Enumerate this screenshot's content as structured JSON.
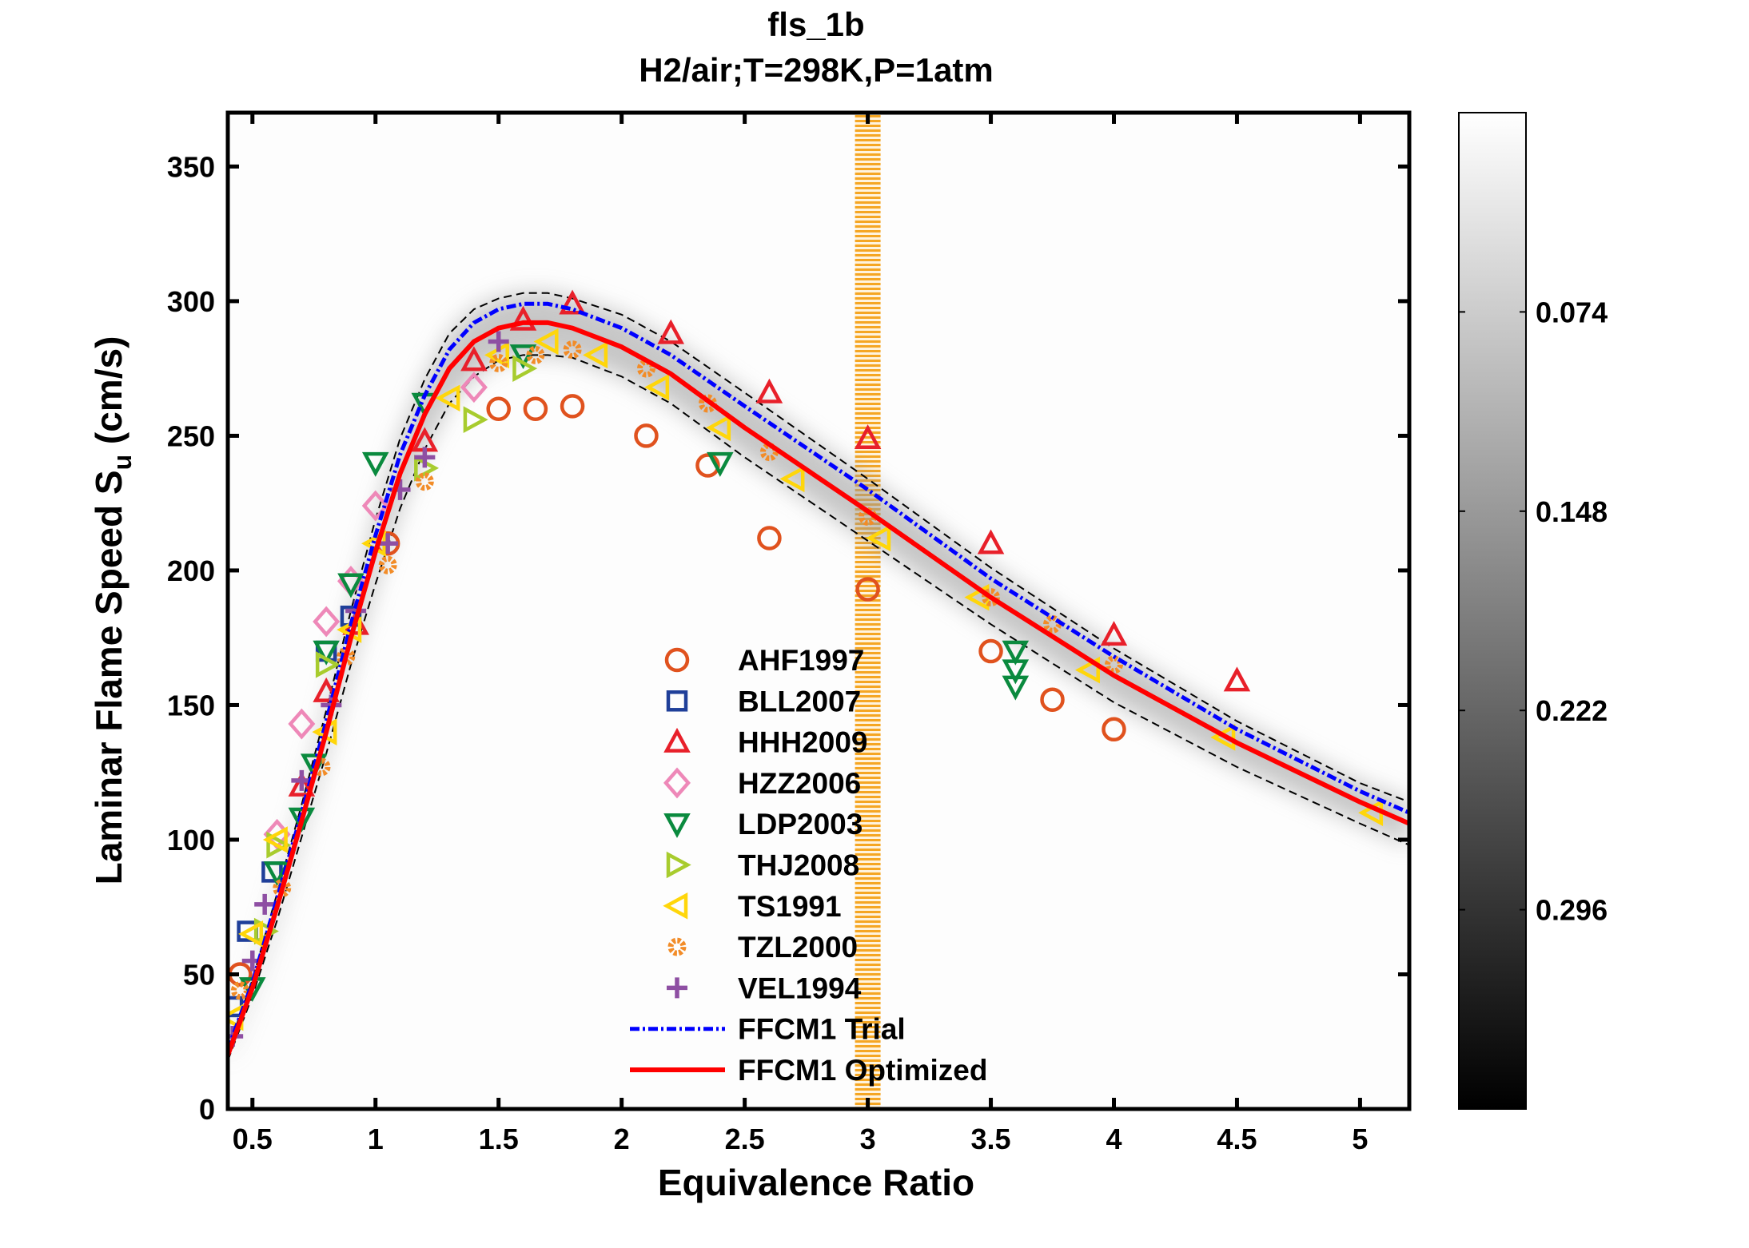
{
  "chart_data": {
    "type": "scatter",
    "title": "fls_1b",
    "subtitle": "H2/air;T=298K,P=1atm",
    "xlabel": "Equivalence Ratio",
    "ylabel": "Laminar Flame Speed S",
    "ylabel_sub": "u",
    "ylabel_unit": " (cm/s)",
    "xlim": [
      0.4,
      5.2
    ],
    "ylim": [
      0,
      370
    ],
    "xticks": [
      0.5,
      1,
      1.5,
      2,
      2.5,
      3,
      3.5,
      4,
      4.5,
      5
    ],
    "xtick_labels": [
      "0.5",
      "1",
      "1.5",
      "2",
      "2.5",
      "3",
      "3.5",
      "4",
      "4.5",
      "5"
    ],
    "yticks": [
      0,
      50,
      100,
      150,
      200,
      250,
      300,
      350
    ],
    "ytick_labels": [
      "0",
      "50",
      "100",
      "150",
      "200",
      "250",
      "300",
      "350"
    ],
    "grid": false,
    "legend_placement": "center-bottom",
    "highlight_band": {
      "x": 3.0,
      "color": "#F5A623"
    },
    "series": [
      {
        "name": "AHF1997",
        "marker": "circle",
        "color": "#E0521E",
        "x": [
          0.45,
          1.05,
          1.5,
          1.65,
          1.8,
          2.1,
          2.35,
          2.6,
          3.0,
          3.5,
          3.75,
          4.0
        ],
        "y": [
          50,
          210,
          260,
          260,
          261,
          250,
          239,
          212,
          193,
          170,
          152,
          141
        ]
      },
      {
        "name": "BLL2007",
        "marker": "square",
        "color": "#1F3F99",
        "x": [
          0.42,
          0.48,
          0.58,
          0.8,
          0.9
        ],
        "y": [
          38,
          66,
          88,
          170,
          183
        ]
      },
      {
        "name": "HHH2009",
        "marker": "triangle-up",
        "color": "#E8202A",
        "x": [
          0.7,
          0.8,
          0.92,
          1.2,
          1.4,
          1.6,
          1.8,
          2.2,
          2.6,
          3.0,
          3.5,
          4.0,
          4.5
        ],
        "y": [
          120,
          155,
          180,
          248,
          278,
          293,
          299,
          288,
          266,
          249,
          210,
          176,
          159
        ]
      },
      {
        "name": "HZZ2006",
        "marker": "diamond",
        "color": "#EE88B8",
        "x": [
          0.6,
          0.7,
          0.8,
          0.9,
          1.0,
          1.4
        ],
        "y": [
          102,
          143,
          181,
          196,
          224,
          268
        ]
      },
      {
        "name": "LDP2003",
        "marker": "triangle-down",
        "color": "#0A8A3E",
        "x": [
          0.5,
          0.6,
          0.7,
          0.75,
          0.8,
          0.9,
          1.0,
          1.2,
          1.6,
          2.4,
          3.6,
          3.6,
          3.6
        ],
        "y": [
          45,
          88,
          108,
          128,
          170,
          195,
          240,
          262,
          280,
          240,
          170,
          163,
          157
        ]
      },
      {
        "name": "THJ2008",
        "marker": "triangle-right",
        "color": "#A8CC2E",
        "x": [
          0.55,
          0.6,
          0.8,
          1.2,
          1.4,
          1.6
        ],
        "y": [
          66,
          98,
          165,
          238,
          256,
          275
        ]
      },
      {
        "name": "TS1991",
        "marker": "triangle-left",
        "color": "#FFD60A",
        "x": [
          0.42,
          0.5,
          0.6,
          0.8,
          0.9,
          1.0,
          1.3,
          1.5,
          1.7,
          1.9,
          2.15,
          2.4,
          2.7,
          3.05,
          3.45,
          3.9,
          4.45,
          5.05
        ],
        "y": [
          34,
          65,
          100,
          140,
          178,
          210,
          264,
          280,
          285,
          280,
          268,
          253,
          234,
          212,
          190,
          163,
          138,
          110
        ]
      },
      {
        "name": "TZL2000",
        "marker": "gear",
        "color": "#F28C28",
        "x": [
          0.45,
          0.62,
          0.78,
          0.88,
          1.05,
          1.2,
          1.5,
          1.65,
          1.8,
          2.1,
          2.35,
          2.6,
          3.0,
          3.5,
          3.75,
          4.0
        ],
        "y": [
          44,
          82,
          127,
          168,
          202,
          233,
          277,
          280,
          282,
          275,
          262,
          244,
          220,
          190,
          180,
          165
        ]
      },
      {
        "name": "VEL1994",
        "marker": "plus",
        "color": "#8E4FA3",
        "x": [
          0.42,
          0.5,
          0.55,
          0.7,
          0.82,
          0.92,
          1.05,
          1.1,
          1.2,
          1.5
        ],
        "y": [
          27,
          55,
          76,
          122,
          150,
          185,
          210,
          230,
          242,
          285
        ]
      }
    ],
    "lines": [
      {
        "name": "FFCM1 Trial",
        "style": "dash-dot",
        "color": "#0000FF",
        "x": [
          0.4,
          0.5,
          0.6,
          0.7,
          0.8,
          0.9,
          1.0,
          1.1,
          1.2,
          1.3,
          1.4,
          1.5,
          1.6,
          1.7,
          1.8,
          2.0,
          2.2,
          2.5,
          3.0,
          3.5,
          4.0,
          4.5,
          5.0,
          5.2
        ],
        "y": [
          22,
          47,
          78,
          110,
          144,
          180,
          213,
          243,
          265,
          282,
          292,
          297,
          299,
          299,
          297,
          290,
          280,
          261,
          230,
          197,
          168,
          141,
          118,
          110
        ]
      },
      {
        "name": "FFCM1 Optimized",
        "style": "solid",
        "color": "#FF0000",
        "x": [
          0.4,
          0.5,
          0.6,
          0.7,
          0.8,
          0.9,
          1.0,
          1.1,
          1.2,
          1.3,
          1.4,
          1.5,
          1.6,
          1.7,
          1.8,
          2.0,
          2.2,
          2.5,
          3.0,
          3.5,
          4.0,
          4.5,
          5.0,
          5.2
        ],
        "y": [
          20,
          45,
          75,
          107,
          140,
          175,
          207,
          236,
          258,
          275,
          285,
          290,
          292,
          292,
          290,
          283,
          273,
          253,
          222,
          190,
          161,
          136,
          114,
          106
        ]
      }
    ],
    "uncertainty_band": {
      "color": "#000000",
      "x": [
        0.4,
        0.5,
        0.6,
        0.7,
        0.8,
        0.9,
        1.0,
        1.1,
        1.2,
        1.3,
        1.4,
        1.5,
        1.6,
        1.7,
        1.8,
        2.0,
        2.2,
        2.5,
        3.0,
        3.5,
        4.0,
        4.5,
        5.0,
        5.2
      ],
      "upper": [
        22,
        48,
        80,
        113,
        148,
        185,
        219,
        249,
        271,
        288,
        297,
        301,
        303,
        303,
        301,
        295,
        285,
        266,
        234,
        201,
        171,
        144,
        121,
        114
      ],
      "lower": [
        18,
        42,
        70,
        101,
        132,
        165,
        195,
        223,
        245,
        262,
        272,
        278,
        280,
        280,
        279,
        272,
        262,
        242,
        211,
        180,
        151,
        127,
        106,
        98
      ]
    },
    "colorbar": {
      "range": [
        0,
        0.37
      ],
      "direction": "top-low",
      "colormap": "gray",
      "ticks": [
        0.074,
        0.148,
        0.222,
        0.296
      ],
      "tick_labels": [
        "0.074",
        "0.148",
        "0.222",
        "0.296"
      ]
    }
  }
}
